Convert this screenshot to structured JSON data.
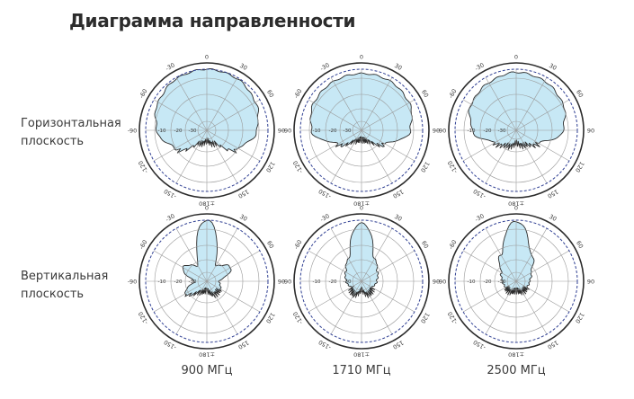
{
  "title": "Диаграмма направленности",
  "rows": [
    {
      "line1": "Горизонтальная",
      "line2": "плоскость"
    },
    {
      "line1": "Вертикальная",
      "line2": "плоскость"
    }
  ],
  "columns": [
    "900 МГц",
    "1710 МГц",
    "2500 МГц"
  ],
  "polar_grid": {
    "angle_labels": [
      "0",
      "30",
      "60",
      "90",
      "120",
      "150",
      "±180",
      "-150",
      "-120",
      "-90",
      "-60",
      "-30"
    ],
    "ring_labels": [
      "-10",
      "-20",
      "-30"
    ]
  },
  "colors": {
    "fill": "#c7e8f5",
    "stroke": "#2b2b2b",
    "grid": "#9a9a9a",
    "outer": "#2b2b2b",
    "dashed": "#2f3f93"
  },
  "patterns": [
    {
      "id": "h900",
      "shape": [
        1.0,
        0.98,
        0.92,
        0.82,
        0.6,
        0.25,
        0.18,
        0.25,
        0.6,
        0.82,
        0.92,
        0.98
      ]
    },
    {
      "id": "h1710",
      "shape": [
        0.93,
        0.93,
        0.9,
        0.8,
        0.45,
        0.2,
        0.15,
        0.2,
        0.45,
        0.82,
        0.9,
        0.92
      ]
    },
    {
      "id": "h2500",
      "shape": [
        0.95,
        0.93,
        0.88,
        0.77,
        0.42,
        0.28,
        0.22,
        0.3,
        0.4,
        0.72,
        0.85,
        0.9
      ]
    },
    {
      "id": "v900",
      "shape": [
        1.0,
        0.3,
        0.45,
        0.2,
        0.25,
        0.25,
        0.15,
        0.2,
        0.4,
        0.2,
        0.45,
        0.3
      ]
    },
    {
      "id": "v1710",
      "shape": [
        0.95,
        0.42,
        0.3,
        0.25,
        0.2,
        0.25,
        0.15,
        0.25,
        0.2,
        0.25,
        0.3,
        0.42
      ]
    },
    {
      "id": "v2500",
      "shape": [
        0.98,
        0.5,
        0.28,
        0.22,
        0.2,
        0.2,
        0.15,
        0.2,
        0.2,
        0.22,
        0.28,
        0.5
      ]
    }
  ]
}
